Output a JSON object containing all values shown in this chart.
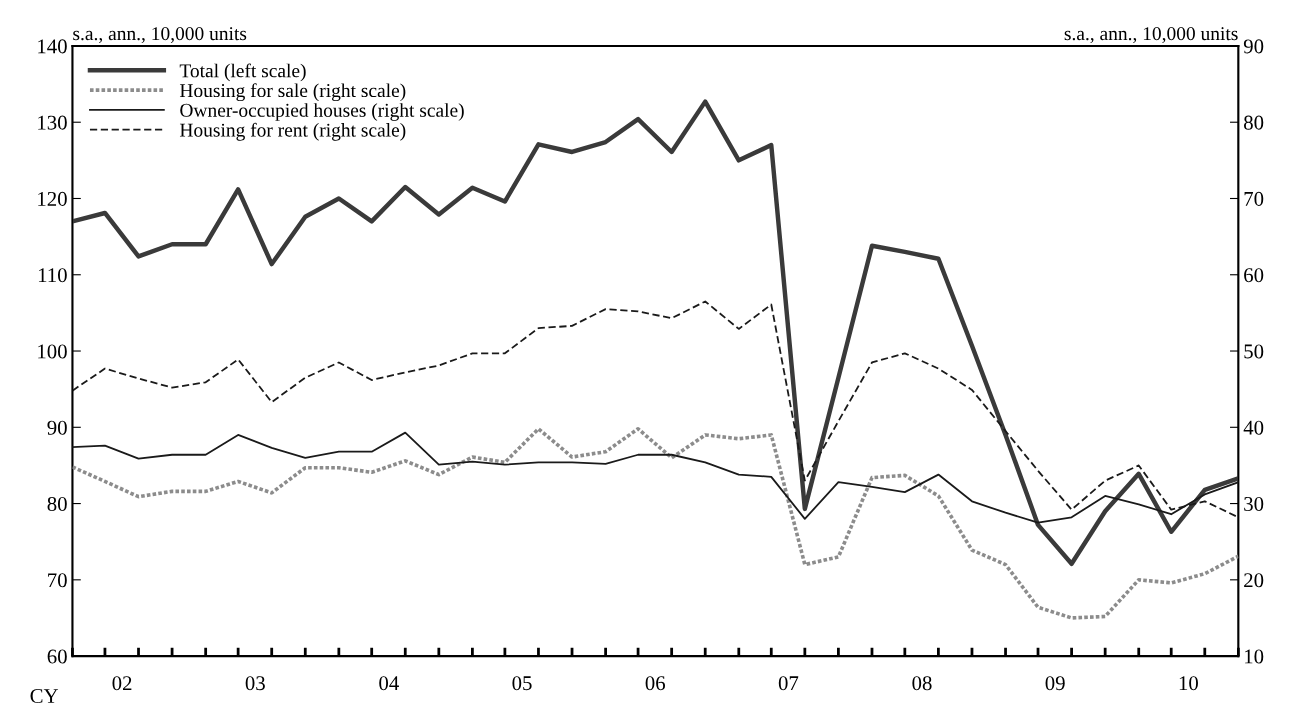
{
  "chart_data": {
    "type": "line",
    "x": [
      "2002-02-15",
      "2002-05-15",
      "2002-08-15",
      "2002-11-15",
      "2003-02-15",
      "2003-05-15",
      "2003-08-15",
      "2003-11-15",
      "2004-02-15",
      "2004-05-15",
      "2004-08-15",
      "2004-11-15",
      "2005-02-15",
      "2005-05-15",
      "2005-08-15",
      "2005-11-15",
      "2006-02-15",
      "2006-05-15",
      "2006-08-15",
      "2006-11-15",
      "2007-02-15",
      "2007-05-15",
      "2007-08-15",
      "2007-11-15",
      "2008-02-15",
      "2008-05-15",
      "2008-08-15",
      "2008-11-15",
      "2009-02-15",
      "2009-05-15",
      "2009-08-15",
      "2009-11-15",
      "2010-02-15",
      "2010-05-15",
      "2010-08-15",
      "2010-11-15"
    ],
    "xlim": [
      "2002-02-15",
      "2010-11-15"
    ],
    "xticks": [
      {
        "value": "2002-07-01",
        "label": "02"
      },
      {
        "value": "2003-07-01",
        "label": "03"
      },
      {
        "value": "2004-07-01",
        "label": "04"
      },
      {
        "value": "2005-07-01",
        "label": "05"
      },
      {
        "value": "2006-07-01",
        "label": "06"
      },
      {
        "value": "2007-07-01",
        "label": "07"
      },
      {
        "value": "2008-07-01",
        "label": "08"
      },
      {
        "value": "2009-07-01",
        "label": "09"
      },
      {
        "value": "2010-07-01",
        "label": "10"
      }
    ],
    "series": [
      {
        "name": "Total (left scale)",
        "color": "#3a3a3a",
        "line_style": "solid",
        "values": [
          117.0,
          118.1,
          112.4,
          114.0,
          114.0,
          121.2,
          111.4,
          117.6,
          120.0,
          117.0,
          121.5,
          117.9,
          121.4,
          119.6,
          127.1,
          126.1,
          127.4,
          130.4,
          126.1,
          132.7,
          125.0,
          127.0,
          79.3,
          96.5,
          113.8,
          113.0,
          112.1,
          100.7,
          89.0,
          77.2,
          72.1,
          79.0,
          83.9,
          76.3,
          81.8,
          83.3
        ]
      },
      {
        "name": "Housing for sale (right scale)",
        "color": "#8c8c8c",
        "line_style": "dotted",
        "axis": "y2",
        "values": [
          34.8,
          32.9,
          30.9,
          31.6,
          31.6,
          32.9,
          31.4,
          34.7,
          34.7,
          34.1,
          35.6,
          33.8,
          36.1,
          35.4,
          39.8,
          36.1,
          36.8,
          39.8,
          36.0,
          39.0,
          38.5,
          39.0,
          22.0,
          23.0,
          33.4,
          33.7,
          31.0,
          23.9,
          22.0,
          16.4,
          15.0,
          15.2,
          20.0,
          19.6,
          20.8,
          23.1
        ]
      },
      {
        "name": "Owner-occupied houses (right scale)",
        "color": "#1a1a1a",
        "line_style": "solid",
        "axis": "y2",
        "values": [
          37.4,
          37.6,
          35.9,
          36.4,
          36.4,
          39.0,
          37.3,
          36.0,
          36.8,
          36.8,
          39.3,
          35.1,
          35.5,
          35.1,
          35.4,
          35.4,
          35.2,
          36.4,
          36.4,
          35.4,
          33.8,
          33.5,
          28.0,
          32.8,
          32.2,
          31.5,
          33.8,
          30.3,
          28.8,
          27.5,
          28.2,
          31.0,
          29.9,
          28.6,
          31.2,
          32.8
        ]
      },
      {
        "name": "Housing for rent (right scale)",
        "color": "#1a1a1a",
        "line_style": "dashed",
        "axis": "y2",
        "values": [
          44.8,
          47.7,
          46.4,
          45.2,
          45.9,
          48.9,
          43.3,
          46.5,
          48.5,
          46.2,
          47.2,
          48.1,
          49.7,
          49.7,
          53.0,
          53.3,
          55.5,
          55.2,
          54.3,
          56.5,
          52.9,
          56.1,
          33.0,
          40.8,
          48.5,
          49.7,
          47.7,
          44.9,
          39.5,
          34.3,
          29.2,
          33.0,
          35.0,
          29.2,
          30.3,
          28.2
        ]
      }
    ],
    "ylim": [
      60,
      140
    ],
    "yticks": [
      60,
      70,
      80,
      90,
      100,
      110,
      120,
      130,
      140
    ],
    "y2lim": [
      10,
      90
    ],
    "y2ticks": [
      10,
      20,
      30,
      40,
      50,
      60,
      70,
      80,
      90
    ],
    "ylabel": "s.a., ann., 10,000 units",
    "y2label": "s.a., ann., 10,000 units",
    "annotations": [
      "CY"
    ],
    "legend": "top left",
    "grid": false,
    "marker": "none"
  }
}
